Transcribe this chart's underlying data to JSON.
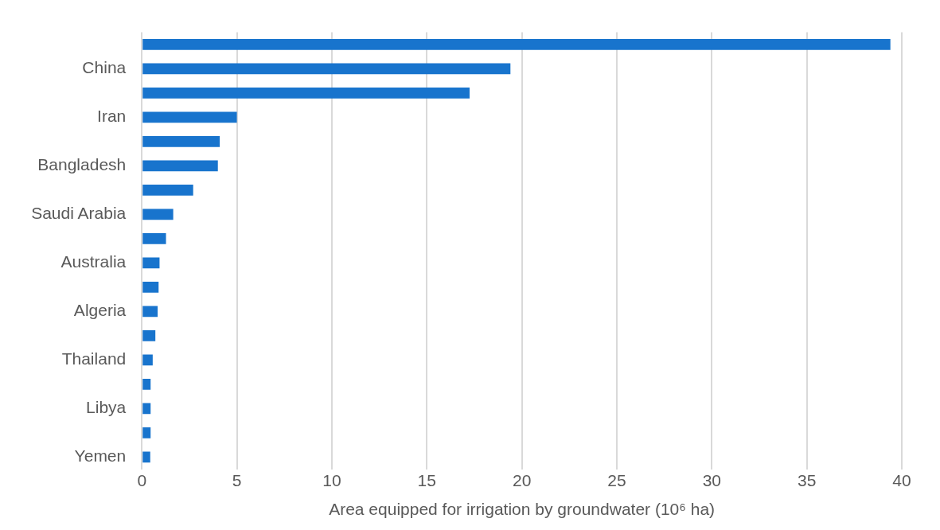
{
  "chart_data": {
    "type": "bar",
    "orientation": "horizontal",
    "xlabel": "Area equipped for irrigation by groundwater (10⁶ ha)",
    "categories": [
      null,
      "China",
      null,
      "Iran",
      null,
      "Bangladesh",
      null,
      "Saudi Arabia",
      null,
      "Australia",
      null,
      "Algeria",
      null,
      "Thailand",
      null,
      "Libya",
      null,
      "Yemen"
    ],
    "values": [
      39.4,
      19.4,
      17.25,
      5.0,
      4.1,
      4.0,
      2.7,
      1.65,
      1.27,
      0.93,
      0.88,
      0.83,
      0.71,
      0.57,
      0.46,
      0.46,
      0.46,
      0.44
    ],
    "color": "#1874cd",
    "xlim": [
      0,
      40
    ],
    "xticks": [
      0,
      5,
      10,
      15,
      20,
      25,
      30,
      35,
      40
    ],
    "grid": "x",
    "legend": false
  }
}
